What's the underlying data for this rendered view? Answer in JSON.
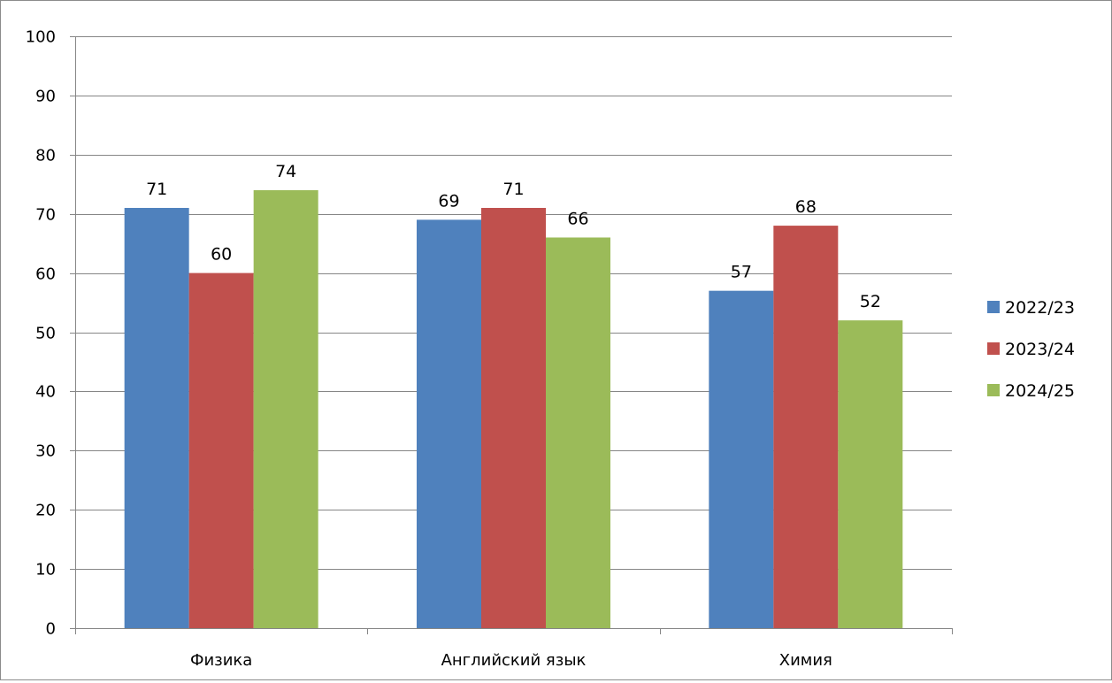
{
  "chart_data": {
    "type": "bar",
    "title": "",
    "xlabel": "",
    "ylabel": "",
    "categories": [
      "Физика",
      "Английский язык",
      "Химия"
    ],
    "series": [
      {
        "name": "2022/23",
        "values": [
          71,
          69,
          57
        ],
        "color": "#4f81bd"
      },
      {
        "name": "2023/24",
        "values": [
          60,
          71,
          68
        ],
        "color": "#c0504d"
      },
      {
        "name": "2024/25",
        "values": [
          74,
          66,
          52
        ],
        "color": "#9bbb59"
      }
    ],
    "ylim": [
      0,
      100
    ],
    "yticks": [
      0,
      10,
      20,
      30,
      40,
      50,
      60,
      70,
      80,
      90,
      100
    ],
    "data_labels": true,
    "grid": true,
    "legend_position": "right"
  },
  "colors": {
    "gridline": "#868686",
    "axis": "#868686"
  }
}
